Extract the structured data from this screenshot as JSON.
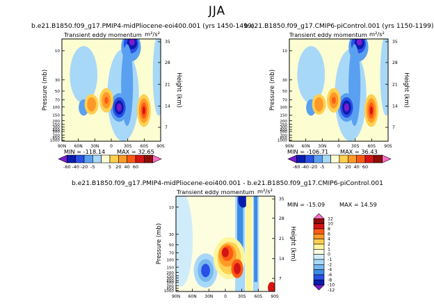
{
  "main_title": "JJA",
  "panels": [
    {
      "title": "b.e21.B1850.f09_g17.PMIP4-midPliocene-eoi400.001 (yrs 1450-1499)",
      "label": "Transient eddy momentum",
      "units": "m²/s²",
      "min_text": "MIN = -118.14",
      "max_text": "MAX = 32.65"
    },
    {
      "title": "b.e21.B1850.f09_g17.CMIP6-piControl.001 (yrs 1150-1199)",
      "label": "Transient eddy momentum",
      "units": "m²/s²",
      "min_text": "MIN = -106.71",
      "max_text": "MAX = 36.43"
    },
    {
      "title": "b.e21.B1850.f09_g17.PMIP4-midPliocene-eoi400.001 - b.e21.B1850.f09_g17.CMIP6-piControl.001",
      "label": "Transient eddy momentum",
      "units": "m²/s²",
      "min_text": "MIN = -15.09",
      "max_text": "MAX = 14.59"
    }
  ],
  "colorbar_top": {
    "labels": [
      "-60",
      "-40",
      "-20",
      "-5",
      "5",
      "20",
      "40",
      "60"
    ]
  },
  "colorbar_diff": {
    "labels": [
      "12",
      "10",
      "8",
      "6",
      "4",
      "2",
      "1",
      "0",
      "-1",
      "-2",
      "-4",
      "-6",
      "-8",
      "-10",
      "-12"
    ]
  },
  "chart_data": {
    "type": "heatmap",
    "title": "JJA",
    "xlabel": "",
    "ylabel": "Pressure (mb)",
    "ylabel_right": "Height (km)",
    "x_ticks": [
      "90N",
      "60N",
      "30N",
      "0",
      "30S",
      "60S",
      "90S"
    ],
    "y_ticks": [
      "10",
      "30",
      "50",
      "70",
      "100",
      "150",
      "200",
      "250",
      "300",
      "400",
      "500",
      "700",
      "850",
      "1000"
    ],
    "y_ticks_right": [
      "35",
      "28",
      "21",
      "14",
      "7"
    ],
    "panels": [
      {
        "label": "b.e21.B1850.f09_g17.PMIP4-midPliocene-eoi400.001 (yrs 1450-1499)",
        "min": -118.14,
        "max": 32.65,
        "levels": [
          -60,
          -40,
          -20,
          -5,
          5,
          20,
          40,
          60
        ],
        "features": [
          {
            "kind": "negative core",
            "lat": 45,
            "pressure_mb": 10,
            "value": -60
          },
          {
            "kind": "negative core",
            "lat": 30,
            "pressure_mb": 250,
            "value": -60
          },
          {
            "kind": "positive core",
            "lat": 0,
            "pressure_mb": 150,
            "value": 20
          },
          {
            "kind": "positive core",
            "lat": -10,
            "pressure_mb": 200,
            "value": 20
          },
          {
            "kind": "positive core",
            "lat": -60,
            "pressure_mb": 250,
            "value": 30
          }
        ]
      },
      {
        "label": "b.e21.B1850.f09_g17.CMIP6-piControl.001 (yrs 1150-1199)",
        "min": -106.71,
        "max": 36.43,
        "levels": [
          -60,
          -40,
          -20,
          -5,
          5,
          20,
          40,
          60
        ],
        "features": [
          {
            "kind": "negative core",
            "lat": 45,
            "pressure_mb": 10,
            "value": -60
          },
          {
            "kind": "negative core",
            "lat": 30,
            "pressure_mb": 250,
            "value": -60
          },
          {
            "kind": "positive core",
            "lat": 0,
            "pressure_mb": 150,
            "value": 20
          },
          {
            "kind": "positive core",
            "lat": -60,
            "pressure_mb": 250,
            "value": 30
          }
        ]
      },
      {
        "label": "b.e21.B1850.f09_g17.PMIP4-midPliocene-eoi400.001 - b.e21.B1850.f09_g17.CMIP6-piControl.001",
        "min": -15.09,
        "max": 14.59,
        "levels": [
          -12,
          -10,
          -8,
          -6,
          -4,
          -2,
          -1,
          0,
          1,
          2,
          4,
          6,
          8,
          10,
          12
        ],
        "features": [
          {
            "kind": "positive core",
            "lat": 0,
            "pressure_mb": 150,
            "value": 8
          },
          {
            "kind": "positive core",
            "lat": -15,
            "pressure_mb": 300,
            "value": 10
          },
          {
            "kind": "negative core",
            "lat": 45,
            "pressure_mb": 300,
            "value": -6
          },
          {
            "kind": "negative core",
            "lat": -30,
            "pressure_mb": 30,
            "value": -8
          },
          {
            "kind": "negative core",
            "lat": 30,
            "pressure_mb": 10,
            "value": -10
          }
        ]
      }
    ]
  },
  "colors": {
    "top_scale": [
      "#7a1bcc",
      "#0a1bb0",
      "#2850e6",
      "#5aa0f0",
      "#a8d8f8",
      "#fdfdd2",
      "#ffd050",
      "#ff9a28",
      "#ff5a14",
      "#d41414",
      "#8e0c0c",
      "#ff6ec7"
    ],
    "diff_scale": [
      "#7a1bcc",
      "#0a1bb0",
      "#2850e6",
      "#3c8ce6",
      "#78b8f0",
      "#a8d8f8",
      "#d0ecfb",
      "#fdfde0",
      "#fff59e",
      "#ffd050",
      "#ff9a28",
      "#ff5a14",
      "#d41414",
      "#8e0c0c",
      "#ff6ec7"
    ]
  }
}
